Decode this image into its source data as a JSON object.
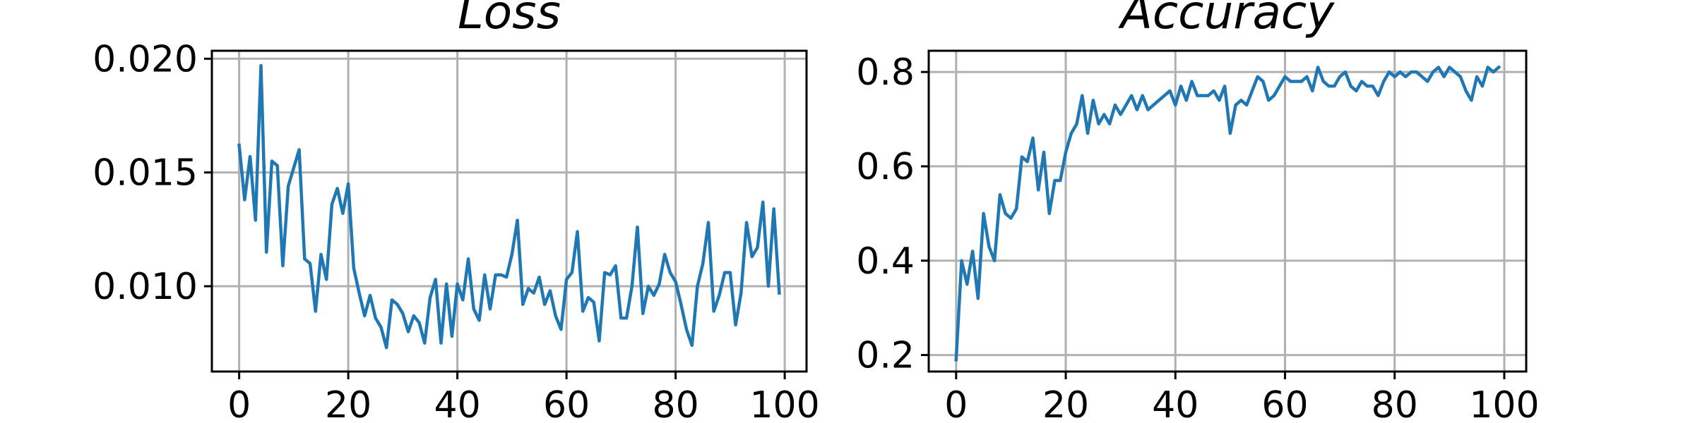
{
  "chart_data": [
    {
      "type": "line",
      "title": "Loss",
      "xlabel": "",
      "ylabel": "",
      "xlim": [
        -5,
        104
      ],
      "ylim": [
        0.00625,
        0.02035
      ],
      "xticks": [
        0,
        20,
        40,
        60,
        80,
        100
      ],
      "xtick_labels": [
        "0",
        "20",
        "40",
        "60",
        "80",
        "100"
      ],
      "yticks": [
        0.01,
        0.015,
        0.02
      ],
      "ytick_labels": [
        "0.010",
        "0.015",
        "0.020"
      ],
      "grid": true,
      "color": "#1f77b4",
      "x": [
        0,
        1,
        2,
        3,
        4,
        5,
        6,
        7,
        8,
        9,
        10,
        11,
        12,
        13,
        14,
        15,
        16,
        17,
        18,
        19,
        20,
        21,
        22,
        23,
        24,
        25,
        26,
        27,
        28,
        29,
        30,
        31,
        32,
        33,
        34,
        35,
        36,
        37,
        38,
        39,
        40,
        41,
        42,
        43,
        44,
        45,
        46,
        47,
        48,
        49,
        50,
        51,
        52,
        53,
        54,
        55,
        56,
        57,
        58,
        59,
        60,
        61,
        62,
        63,
        64,
        65,
        66,
        67,
        68,
        69,
        70,
        71,
        72,
        73,
        74,
        75,
        76,
        77,
        78,
        79,
        80,
        81,
        82,
        83,
        84,
        85,
        86,
        87,
        88,
        89,
        90,
        91,
        92,
        93,
        94,
        95,
        96,
        97,
        98,
        99
      ],
      "y": [
        0.0162,
        0.0138,
        0.0157,
        0.0129,
        0.0197,
        0.0115,
        0.0155,
        0.0153,
        0.0109,
        0.0144,
        0.0152,
        0.016,
        0.0112,
        0.011,
        0.0089,
        0.0114,
        0.0103,
        0.0136,
        0.0143,
        0.0132,
        0.0145,
        0.0108,
        0.0097,
        0.0087,
        0.0096,
        0.0086,
        0.0082,
        0.0073,
        0.0094,
        0.0092,
        0.0088,
        0.008,
        0.0087,
        0.0084,
        0.0075,
        0.0095,
        0.0103,
        0.0075,
        0.0101,
        0.0078,
        0.0101,
        0.0094,
        0.0112,
        0.009,
        0.0085,
        0.0105,
        0.009,
        0.0105,
        0.0105,
        0.0104,
        0.0114,
        0.0129,
        0.0092,
        0.0099,
        0.0097,
        0.0104,
        0.0092,
        0.0098,
        0.0087,
        0.0081,
        0.0103,
        0.0106,
        0.0124,
        0.0089,
        0.0095,
        0.0093,
        0.0076,
        0.0106,
        0.0105,
        0.0109,
        0.0086,
        0.0086,
        0.01,
        0.0126,
        0.0088,
        0.01,
        0.0096,
        0.0101,
        0.0114,
        0.0106,
        0.0102,
        0.0092,
        0.0081,
        0.0074,
        0.01,
        0.011,
        0.0128,
        0.0089,
        0.0096,
        0.0106,
        0.0106,
        0.0083,
        0.0097,
        0.0128,
        0.0113,
        0.0117,
        0.0137,
        0.01,
        0.0134,
        0.0097
      ]
    },
    {
      "type": "line",
      "title": "Accuracy",
      "xlabel": "",
      "ylabel": "",
      "xlim": [
        -5,
        104
      ],
      "ylim": [
        0.165,
        0.845
      ],
      "xticks": [
        0,
        20,
        40,
        60,
        80,
        100
      ],
      "xtick_labels": [
        "0",
        "20",
        "40",
        "60",
        "80",
        "100"
      ],
      "yticks": [
        0.2,
        0.4,
        0.6,
        0.8
      ],
      "ytick_labels": [
        "0.2",
        "0.4",
        "0.6",
        "0.8"
      ],
      "grid": true,
      "color": "#1f77b4",
      "x": [
        0,
        1,
        2,
        3,
        4,
        5,
        6,
        7,
        8,
        9,
        10,
        11,
        12,
        13,
        14,
        15,
        16,
        17,
        18,
        19,
        20,
        21,
        22,
        23,
        24,
        25,
        26,
        27,
        28,
        29,
        30,
        31,
        32,
        33,
        34,
        35,
        36,
        37,
        38,
        39,
        40,
        41,
        42,
        43,
        44,
        45,
        46,
        47,
        48,
        49,
        50,
        51,
        52,
        53,
        54,
        55,
        56,
        57,
        58,
        59,
        60,
        61,
        62,
        63,
        64,
        65,
        66,
        67,
        68,
        69,
        70,
        71,
        72,
        73,
        74,
        75,
        76,
        77,
        78,
        79,
        80,
        81,
        82,
        83,
        84,
        85,
        86,
        87,
        88,
        89,
        90,
        91,
        92,
        93,
        94,
        95,
        96,
        97,
        98,
        99
      ],
      "y": [
        0.19,
        0.4,
        0.35,
        0.42,
        0.32,
        0.5,
        0.43,
        0.4,
        0.54,
        0.5,
        0.49,
        0.51,
        0.62,
        0.61,
        0.66,
        0.55,
        0.63,
        0.5,
        0.57,
        0.57,
        0.63,
        0.67,
        0.69,
        0.75,
        0.67,
        0.74,
        0.69,
        0.71,
        0.69,
        0.73,
        0.71,
        0.73,
        0.75,
        0.72,
        0.75,
        0.72,
        0.73,
        0.74,
        0.75,
        0.76,
        0.73,
        0.77,
        0.74,
        0.78,
        0.75,
        0.75,
        0.75,
        0.76,
        0.74,
        0.77,
        0.67,
        0.73,
        0.74,
        0.73,
        0.76,
        0.79,
        0.78,
        0.74,
        0.75,
        0.77,
        0.79,
        0.78,
        0.78,
        0.78,
        0.79,
        0.76,
        0.81,
        0.78,
        0.77,
        0.77,
        0.79,
        0.8,
        0.77,
        0.76,
        0.78,
        0.77,
        0.77,
        0.75,
        0.78,
        0.8,
        0.79,
        0.8,
        0.79,
        0.8,
        0.8,
        0.79,
        0.78,
        0.8,
        0.81,
        0.79,
        0.81,
        0.8,
        0.79,
        0.76,
        0.74,
        0.79,
        0.77,
        0.81,
        0.8,
        0.81
      ]
    }
  ]
}
